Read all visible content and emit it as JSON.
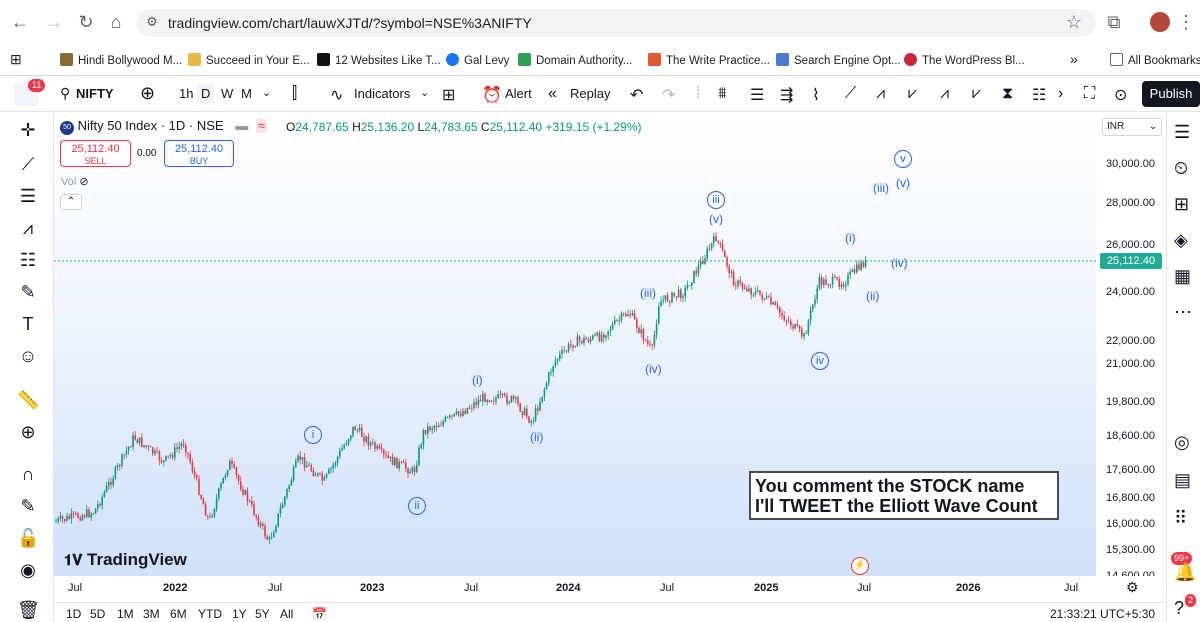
{
  "browser": {
    "url": "tradingview.com/chart/lauwXJTd/?symbol=NSE%3ANIFTY",
    "bookmarks": [
      "Hindi Bollywood M...",
      "Succeed in Your E...",
      "12 Websites Like T...",
      "Gal Levy",
      "Domain Authority...",
      "The Write Practice...",
      "Search Engine Opt...",
      "The WordPress Bl..."
    ],
    "all_bookmarks": "All Bookmarks",
    "more": "»"
  },
  "toolbar": {
    "notif_count": "11",
    "symbol": "NIFTY",
    "intervals": [
      "1h",
      "D",
      "W",
      "M"
    ],
    "indicators": "Indicators",
    "alert": "Alert",
    "replay": "Replay",
    "publish": "Publish"
  },
  "legend": {
    "title": "Nifty 50 Index · 1D · NSE",
    "badge": "50",
    "open_label": "O",
    "open": "24,787.65",
    "high_label": "H",
    "high": "25,136.20",
    "low_label": "L",
    "low": "24,783.65",
    "close_label": "C",
    "close": "25,112.40",
    "change": "+319.15 (+1.29%)",
    "sell_price": "25,112.40",
    "sell_label": "SELL",
    "buy_price": "25,112.40",
    "buy_label": "BUY",
    "spread": "0.00",
    "vol": "Vol"
  },
  "currency": "INR",
  "current_price": "25,112.40",
  "chart_data": {
    "type": "candlestick",
    "symbol": "Nifty 50 Index",
    "interval": "1D",
    "y_tick_labels": [
      "30,000.00",
      "28,000.00",
      "26,000.00",
      "24,000.00",
      "22,000.00",
      "21,000.00",
      "19,800.00",
      "18,600.00",
      "17,600.00",
      "16,800.00",
      "16,000.00",
      "15,300.00",
      "14,600.00"
    ],
    "x_tick_labels": [
      "Jul",
      "2022",
      "Jul",
      "2023",
      "Jul",
      "2024",
      "Jul",
      "2025",
      "Jul",
      "2026",
      "Jul"
    ],
    "wave_labels": [
      {
        "text": "i",
        "style": "circle"
      },
      {
        "text": "ii",
        "style": "circle"
      },
      {
        "text": "(i)",
        "style": "paren"
      },
      {
        "text": "(ii)",
        "style": "paren"
      },
      {
        "text": "(iii)",
        "style": "paren"
      },
      {
        "text": "(iv)",
        "style": "paren"
      },
      {
        "text": "iii",
        "style": "circle"
      },
      {
        "text": "(v)",
        "style": "paren"
      },
      {
        "text": "iv",
        "style": "circle"
      },
      {
        "text": "(i)",
        "style": "paren"
      },
      {
        "text": "(ii)",
        "style": "paren"
      },
      {
        "text": "(iv)",
        "style": "paren"
      },
      {
        "text": "(iii)",
        "style": "paren"
      },
      {
        "text": "(v)",
        "style": "paren"
      },
      {
        "text": "v",
        "style": "circle"
      }
    ],
    "scale": "log"
  },
  "promo": {
    "line1": "You comment the STOCK name",
    "line2": "I'll TWEET the Elliott Wave Count"
  },
  "brand": "TradingView",
  "ranges": [
    "1D",
    "5D",
    "1M",
    "3M",
    "6M",
    "YTD",
    "1Y",
    "5Y",
    "All"
  ],
  "clock": "21:33:21 UTC+5:30",
  "right_badge": "99+",
  "right_badge2": "2"
}
